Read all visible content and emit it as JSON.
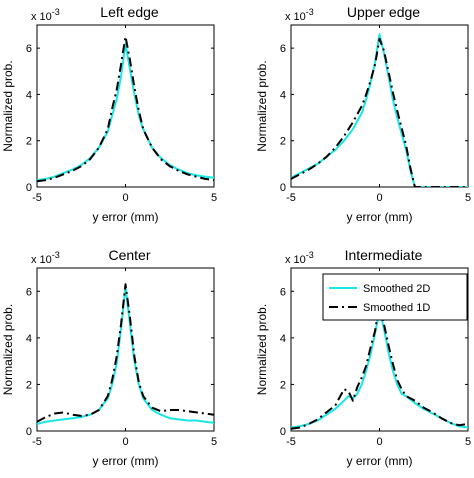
{
  "colors": {
    "smoothed_2d": "#19e6e6",
    "smoothed_1d": "#000000",
    "axes": "#000000"
  },
  "chart_data": [
    {
      "type": "line",
      "title": "Left edge",
      "xlabel": "y error (mm)",
      "ylabel": "Normalized prob.",
      "y_exponent_label": "x 10",
      "y_exponent_power": "-3",
      "xlim": [
        -5,
        5
      ],
      "ylim": [
        0,
        7
      ],
      "xticks": [
        "-5",
        "0",
        "5"
      ],
      "yticks": [
        "0",
        "2",
        "4",
        "6"
      ],
      "grid": false,
      "legend": null,
      "series": [
        {
          "key": "smoothed_2d",
          "x": [
            -5,
            -4.5,
            -4,
            -3.5,
            -3,
            -2.5,
            -2,
            -1.5,
            -1,
            -0.75,
            -0.5,
            -0.25,
            0,
            0.25,
            0.5,
            0.75,
            1,
            1.5,
            2,
            2.5,
            3,
            3.5,
            4,
            4.5,
            5
          ],
          "y": [
            0.3,
            0.35,
            0.45,
            0.6,
            0.75,
            0.95,
            1.25,
            1.7,
            2.4,
            3.1,
            3.8,
            4.8,
            6.2,
            5.1,
            4.0,
            3.1,
            2.5,
            1.7,
            1.25,
            0.95,
            0.75,
            0.6,
            0.5,
            0.45,
            0.4
          ]
        },
        {
          "key": "smoothed_1d",
          "x": [
            -5,
            -4.5,
            -4,
            -3.5,
            -3,
            -2.5,
            -2,
            -1.5,
            -1,
            -0.75,
            -0.5,
            -0.25,
            0,
            0.25,
            0.5,
            0.75,
            1,
            1.5,
            2,
            2.5,
            3,
            3.5,
            4,
            4.5,
            5
          ],
          "y": [
            0.25,
            0.3,
            0.4,
            0.55,
            0.7,
            0.9,
            1.2,
            1.7,
            2.5,
            3.4,
            4.2,
            5.3,
            6.5,
            5.5,
            4.3,
            3.3,
            2.5,
            1.7,
            1.2,
            0.9,
            0.7,
            0.55,
            0.45,
            0.35,
            0.3
          ]
        }
      ]
    },
    {
      "type": "line",
      "title": "Upper edge",
      "xlabel": "y error (mm)",
      "ylabel": "Normalized prob.",
      "y_exponent_label": "x 10",
      "y_exponent_power": "-3",
      "xlim": [
        -5,
        5
      ],
      "ylim": [
        0,
        7
      ],
      "xticks": [
        "-5",
        "0",
        "5"
      ],
      "yticks": [
        "0",
        "2",
        "4",
        "6"
      ],
      "grid": false,
      "legend": null,
      "series": [
        {
          "key": "smoothed_2d",
          "x": [
            -5,
            -4.5,
            -4,
            -3.5,
            -3,
            -2.5,
            -2,
            -1.5,
            -1,
            -0.75,
            -0.5,
            -0.25,
            0,
            0.25,
            0.5,
            0.75,
            1,
            1.5,
            1.75,
            2,
            2.5,
            3,
            4,
            5
          ],
          "y": [
            0.4,
            0.6,
            0.8,
            1.0,
            1.3,
            1.6,
            2.0,
            2.5,
            3.2,
            3.8,
            4.5,
            5.4,
            6.6,
            5.8,
            4.8,
            3.8,
            3.0,
            1.6,
            0.7,
            0.0,
            0.0,
            0.0,
            0.0,
            0.0
          ]
        },
        {
          "key": "smoothed_1d",
          "x": [
            -5,
            -4.5,
            -4,
            -3.5,
            -3,
            -2.5,
            -2,
            -1.5,
            -1,
            -0.75,
            -0.5,
            -0.25,
            0,
            0.25,
            0.5,
            0.75,
            1,
            1.5,
            1.75,
            2,
            2.5,
            3,
            4,
            5
          ],
          "y": [
            0.35,
            0.55,
            0.75,
            1.0,
            1.3,
            1.7,
            2.2,
            2.8,
            3.5,
            4.0,
            4.6,
            5.3,
            6.4,
            5.9,
            5.0,
            4.1,
            3.3,
            1.8,
            0.8,
            0.0,
            0.0,
            0.0,
            0.0,
            0.0
          ]
        }
      ]
    },
    {
      "type": "line",
      "title": "Center",
      "xlabel": "y error (mm)",
      "ylabel": "Normalized prob.",
      "y_exponent_label": "x 10",
      "y_exponent_power": "-3",
      "xlim": [
        -5,
        5
      ],
      "ylim": [
        0,
        7
      ],
      "xticks": [
        "-5",
        "0",
        "5"
      ],
      "yticks": [
        "0",
        "2",
        "4",
        "6"
      ],
      "grid": false,
      "legend": null,
      "series": [
        {
          "key": "smoothed_2d",
          "x": [
            -5,
            -4.5,
            -4,
            -3.5,
            -3,
            -2.5,
            -2,
            -1.5,
            -1,
            -0.75,
            -0.5,
            -0.25,
            0,
            0.25,
            0.5,
            0.75,
            1,
            1.5,
            2,
            2.5,
            3,
            3.5,
            4,
            4.5,
            5
          ],
          "y": [
            0.3,
            0.4,
            0.45,
            0.5,
            0.55,
            0.6,
            0.7,
            0.9,
            1.4,
            2.0,
            2.9,
            4.4,
            6.2,
            4.6,
            3.0,
            2.0,
            1.4,
            0.9,
            0.7,
            0.55,
            0.5,
            0.45,
            0.45,
            0.4,
            0.35
          ]
        },
        {
          "key": "smoothed_1d",
          "x": [
            -5,
            -4.5,
            -4,
            -3.5,
            -3,
            -2.5,
            -2,
            -1.5,
            -1,
            -0.75,
            -0.5,
            -0.25,
            0,
            0.25,
            0.5,
            0.75,
            1,
            1.5,
            2,
            2.5,
            3,
            3.5,
            4,
            4.5,
            5
          ],
          "y": [
            0.4,
            0.6,
            0.75,
            0.8,
            0.7,
            0.65,
            0.7,
            0.9,
            1.5,
            2.2,
            3.2,
            4.6,
            6.3,
            4.9,
            3.2,
            2.1,
            1.5,
            1.0,
            0.85,
            0.9,
            0.9,
            0.85,
            0.8,
            0.75,
            0.7
          ]
        }
      ]
    },
    {
      "type": "line",
      "title": "Intermediate",
      "xlabel": "y error (mm)",
      "ylabel": "Normalized prob.",
      "y_exponent_label": "x 10",
      "y_exponent_power": "-3",
      "xlim": [
        -5,
        5
      ],
      "ylim": [
        0,
        7
      ],
      "xticks": [
        "-5",
        "0",
        "5"
      ],
      "yticks": [
        "0",
        "2",
        "4",
        "6"
      ],
      "grid": false,
      "legend": {
        "position": "top-right"
      },
      "series": [
        {
          "key": "smoothed_2d",
          "name": "Smoothed 2D",
          "x": [
            -5,
            -4.5,
            -4,
            -3.5,
            -3,
            -2.5,
            -2,
            -1.75,
            -1.5,
            -1.25,
            -1,
            -0.75,
            -0.5,
            -0.25,
            0,
            0.25,
            0.5,
            0.75,
            1,
            1.25,
            1.5,
            2,
            2.5,
            3,
            3.5,
            4,
            4.5,
            5
          ],
          "y": [
            0.15,
            0.2,
            0.3,
            0.45,
            0.7,
            0.95,
            1.3,
            1.5,
            1.4,
            1.6,
            2.0,
            2.6,
            3.3,
            4.2,
            5.2,
            4.4,
            3.4,
            2.6,
            2.0,
            1.6,
            1.5,
            1.2,
            0.95,
            0.75,
            0.55,
            0.35,
            0.2,
            0.15
          ]
        },
        {
          "key": "smoothed_1d",
          "name": "Smoothed 1D",
          "x": [
            -5,
            -4.5,
            -4,
            -3.5,
            -3,
            -2.5,
            -2,
            -1.75,
            -1.5,
            -1.25,
            -1,
            -0.75,
            -0.5,
            -0.25,
            0,
            0.25,
            0.5,
            0.75,
            1,
            1.25,
            1.5,
            2,
            2.5,
            3,
            3.5,
            4,
            4.5,
            5
          ],
          "y": [
            0.1,
            0.15,
            0.3,
            0.5,
            0.8,
            1.1,
            1.8,
            1.7,
            1.3,
            1.9,
            2.3,
            2.8,
            3.6,
            4.3,
            5.5,
            4.6,
            3.7,
            2.9,
            2.2,
            1.8,
            1.5,
            1.3,
            1.0,
            0.8,
            0.55,
            0.35,
            0.25,
            0.3
          ]
        }
      ]
    }
  ]
}
